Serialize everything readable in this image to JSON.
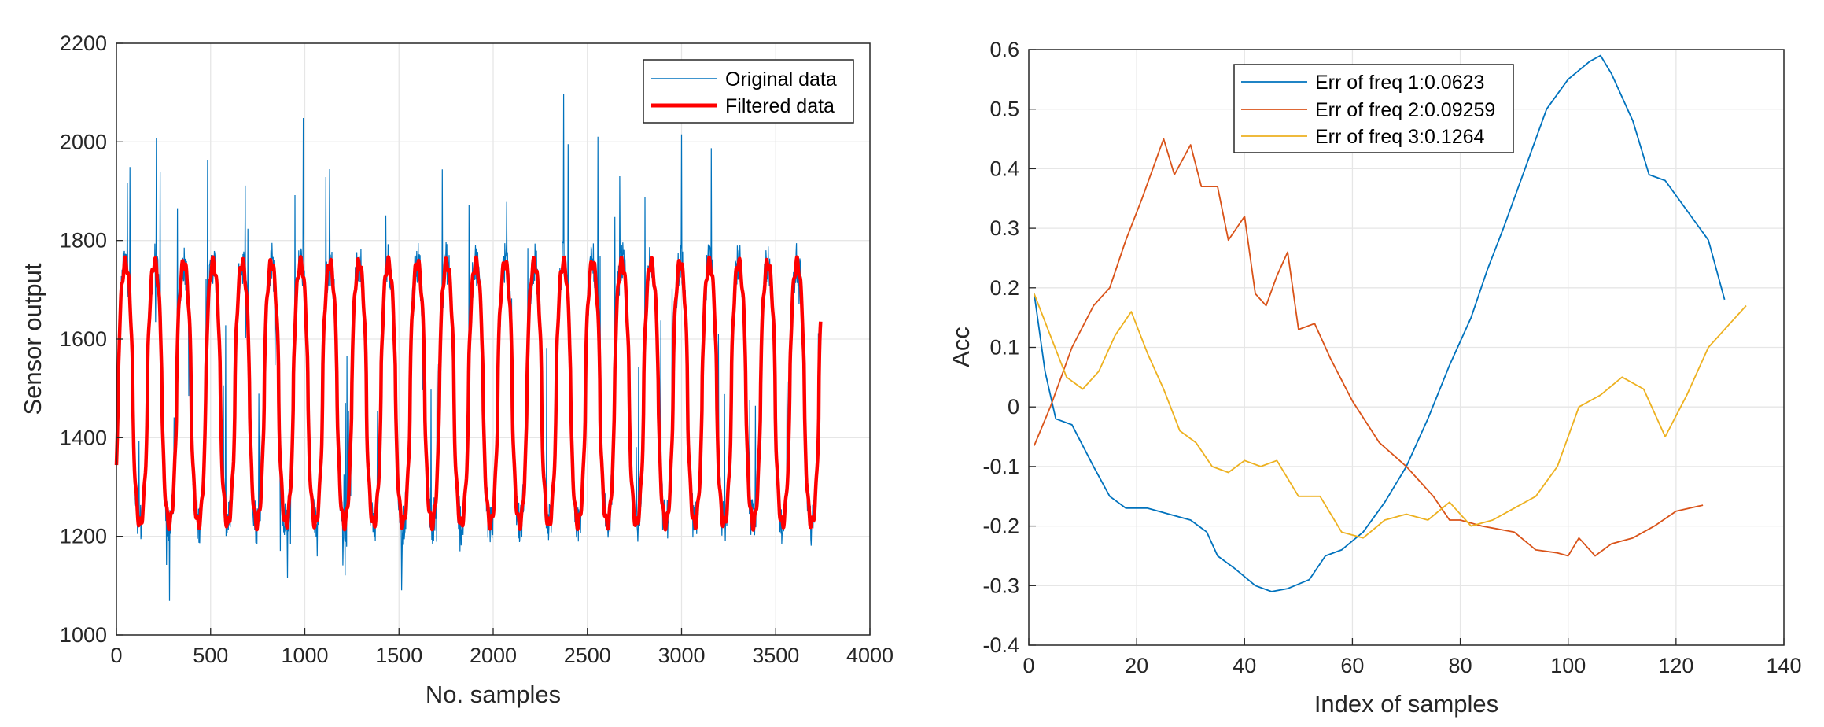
{
  "chart_data": [
    {
      "type": "line",
      "xlabel": "No. samples",
      "ylabel": "Sensor output",
      "xlim": [
        0,
        4000
      ],
      "ylim": [
        1000,
        2200
      ],
      "xticks": [
        "0",
        "500",
        "1000",
        "1500",
        "2000",
        "2500",
        "3000",
        "3500",
        "4000"
      ],
      "yticks": [
        "1000",
        "1200",
        "1400",
        "1600",
        "1800",
        "2000",
        "2200"
      ],
      "grid": true,
      "legend_position": "top-right",
      "cycle_period_samples": 155,
      "num_samples": 3740,
      "series": [
        {
          "name": "Original data",
          "color": "#0072BD",
          "style": "thin",
          "trough_level_approx": 1200,
          "peak_level_approx": 1800,
          "spike_max_approx": 2060,
          "spike_min_approx": 1050
        },
        {
          "name": "Filtered data",
          "color": "#FF0000",
          "style": "thick",
          "trough_level_approx": 1230,
          "peak_level_approx": 1750
        }
      ]
    },
    {
      "type": "line",
      "xlabel": "Index of samples",
      "ylabel": "Acc",
      "xlim": [
        0,
        140
      ],
      "ylim": [
        -0.4,
        0.6
      ],
      "xticks": [
        "0",
        "20",
        "40",
        "60",
        "80",
        "100",
        "120",
        "140"
      ],
      "yticks": [
        "-0.4",
        "-0.3",
        "-0.2",
        "-0.1",
        "0",
        "0.1",
        "0.2",
        "0.3",
        "0.4",
        "0.5",
        "0.6"
      ],
      "grid": true,
      "legend_position": "top-left",
      "series": [
        {
          "name": "Err of freq 1:0.0623",
          "color": "#0072BD",
          "x": [
            1,
            3,
            5,
            8,
            12,
            15,
            18,
            22,
            26,
            30,
            33,
            35,
            38,
            42,
            45,
            48,
            52,
            55,
            58,
            62,
            66,
            70,
            74,
            78,
            82,
            85,
            88,
            92,
            96,
            100,
            104,
            106,
            108,
            112,
            115,
            118,
            122,
            126,
            129
          ],
          "y": [
            0.19,
            0.06,
            -0.02,
            -0.03,
            -0.1,
            -0.15,
            -0.17,
            -0.17,
            -0.18,
            -0.19,
            -0.21,
            -0.25,
            -0.27,
            -0.3,
            -0.31,
            -0.305,
            -0.29,
            -0.25,
            -0.24,
            -0.21,
            -0.16,
            -0.1,
            -0.02,
            0.07,
            0.15,
            0.23,
            0.3,
            0.4,
            0.5,
            0.55,
            0.58,
            0.59,
            0.56,
            0.48,
            0.39,
            0.38,
            0.33,
            0.28,
            0.18
          ]
        },
        {
          "name": "Err of freq 2:0.09259",
          "color": "#D95319",
          "x": [
            1,
            4,
            8,
            12,
            15,
            18,
            21,
            25,
            27,
            30,
            32,
            35,
            37,
            40,
            42,
            44,
            46,
            48,
            50,
            53,
            56,
            60,
            65,
            70,
            75,
            78,
            80,
            84,
            90,
            94,
            98,
            100,
            102,
            105,
            108,
            112,
            116,
            120,
            125
          ],
          "y": [
            -0.065,
            0.0,
            0.1,
            0.17,
            0.2,
            0.28,
            0.35,
            0.45,
            0.39,
            0.44,
            0.37,
            0.37,
            0.28,
            0.32,
            0.19,
            0.17,
            0.22,
            0.26,
            0.13,
            0.14,
            0.08,
            0.01,
            -0.06,
            -0.1,
            -0.15,
            -0.19,
            -0.19,
            -0.2,
            -0.21,
            -0.24,
            -0.245,
            -0.25,
            -0.22,
            -0.25,
            -0.23,
            -0.22,
            -0.2,
            -0.175,
            -0.165
          ]
        },
        {
          "name": "Err of freq 3:0.1264",
          "color": "#EDB120",
          "x": [
            1,
            4,
            7,
            10,
            13,
            16,
            19,
            22,
            25,
            28,
            31,
            34,
            37,
            40,
            43,
            46,
            50,
            54,
            58,
            62,
            66,
            70,
            74,
            78,
            82,
            86,
            90,
            94,
            98,
            102,
            106,
            110,
            114,
            118,
            122,
            126,
            130,
            133
          ],
          "y": [
            0.19,
            0.12,
            0.05,
            0.03,
            0.06,
            0.12,
            0.16,
            0.09,
            0.03,
            -0.04,
            -0.06,
            -0.1,
            -0.11,
            -0.09,
            -0.1,
            -0.09,
            -0.15,
            -0.15,
            -0.21,
            -0.22,
            -0.19,
            -0.18,
            -0.19,
            -0.16,
            -0.2,
            -0.19,
            -0.17,
            -0.15,
            -0.1,
            0.0,
            0.02,
            0.05,
            0.03,
            -0.05,
            0.02,
            0.1,
            0.14,
            0.17
          ]
        }
      ]
    }
  ]
}
